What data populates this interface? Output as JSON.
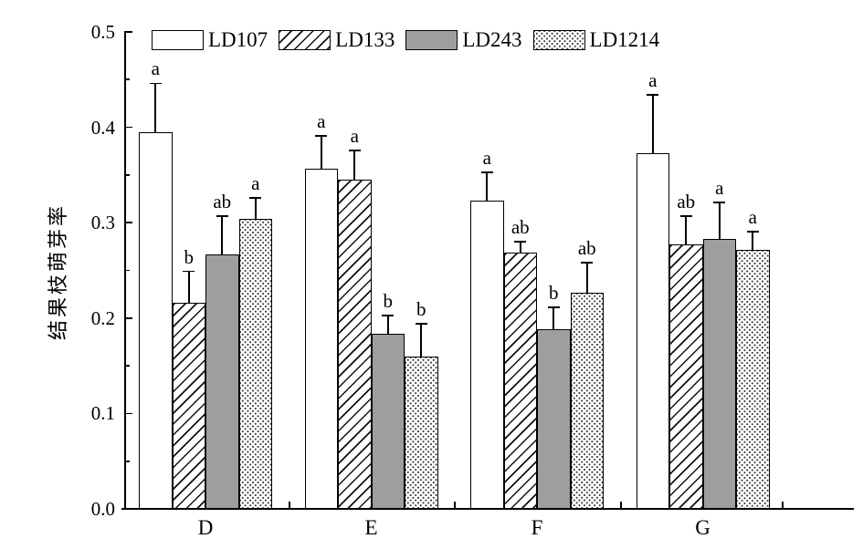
{
  "chart_data": {
    "type": "bar",
    "title": "",
    "xlabel": "",
    "ylabel": "结果枝萌芽率",
    "categories": [
      "D",
      "E",
      "F",
      "G"
    ],
    "ylim": [
      0,
      0.5
    ],
    "y_major_tick_step": 0.1,
    "y_minor_tick_step": 0.05,
    "y_tick_labels": [
      "0.0",
      "0.1",
      "0.2",
      "0.3",
      "0.4",
      "0.5"
    ],
    "grid": false,
    "legend_position": "top-inside",
    "error_bars": "upper-only-with-cap",
    "series": [
      {
        "name": "LD107",
        "pattern": "plain-white",
        "values": [
          0.394,
          0.356,
          0.322,
          0.372
        ],
        "errors": [
          0.052,
          0.035,
          0.031,
          0.062
        ],
        "sig_letters": [
          "a",
          "a",
          "a",
          "a"
        ]
      },
      {
        "name": "LD133",
        "pattern": "diagonal-hatch",
        "values": [
          0.215,
          0.344,
          0.268,
          0.276
        ],
        "errors": [
          0.034,
          0.032,
          0.012,
          0.031
        ],
        "sig_letters": [
          "b",
          "a",
          "ab",
          "ab"
        ]
      },
      {
        "name": "LD243",
        "pattern": "solid-gray",
        "values": [
          0.266,
          0.183,
          0.187,
          0.282
        ],
        "errors": [
          0.041,
          0.02,
          0.024,
          0.039
        ],
        "sig_letters": [
          "ab",
          "b",
          "b",
          "a"
        ]
      },
      {
        "name": "LD1214",
        "pattern": "dots",
        "values": [
          0.303,
          0.159,
          0.226,
          0.271
        ],
        "errors": [
          0.023,
          0.035,
          0.032,
          0.02
        ],
        "sig_letters": [
          "a",
          "b",
          "ab",
          "a"
        ]
      }
    ]
  },
  "colors": {
    "ink": "#000000",
    "gray_fill": "#9e9e9e",
    "background": "#ffffff"
  }
}
